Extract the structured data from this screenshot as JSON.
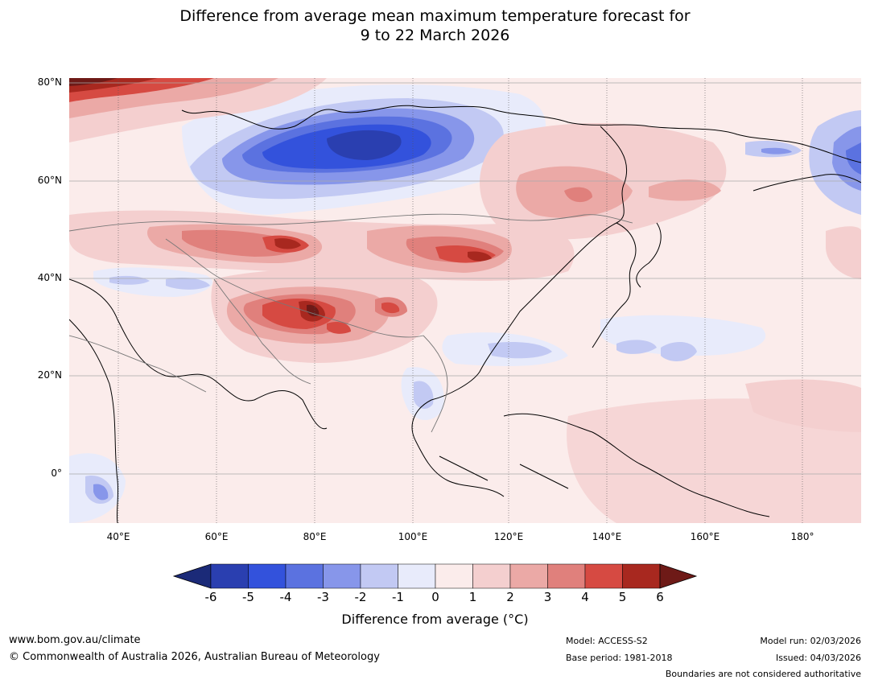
{
  "title": {
    "line1": "Difference from average mean maximum temperature forecast for",
    "line2": "9 to 22 March 2026"
  },
  "map": {
    "lat_labels": [
      "80°N",
      "60°N",
      "40°N",
      "20°N",
      "0°"
    ],
    "lon_labels": [
      "40°E",
      "60°E",
      "80°E",
      "100°E",
      "120°E",
      "140°E",
      "160°E",
      "180°"
    ],
    "extent": {
      "lon_min": 30,
      "lon_max": 191,
      "lat_min": -10,
      "lat_max": 80
    }
  },
  "legend": {
    "ticks": [
      "-6",
      "-5",
      "-4",
      "-3",
      "-2",
      "-1",
      "0",
      "1",
      "2",
      "3",
      "4",
      "5",
      "6"
    ],
    "colors": [
      "#1b2a78",
      "#2a3fb0",
      "#3352dc",
      "#5b72e0",
      "#8796ea",
      "#c2c9f3",
      "#e8ebfb",
      "#fbeceb",
      "#f4cfcf",
      "#eba9a6",
      "#e0807c",
      "#d64a42",
      "#a8281f",
      "#6e1a17"
    ],
    "label": "Difference from average (°C)"
  },
  "footer": {
    "url": "www.bom.gov.au/climate",
    "copyright": "© Commonwealth of Australia 2026, Australian Bureau of Meteorology",
    "model": "Model: ACCESS-S2",
    "base_period": "Base period: 1981-2018",
    "model_run": "Model run: 02/03/2026",
    "issued": "Issued: 04/03/2026",
    "disclaimer": "Boundaries are not considered authoritative"
  }
}
